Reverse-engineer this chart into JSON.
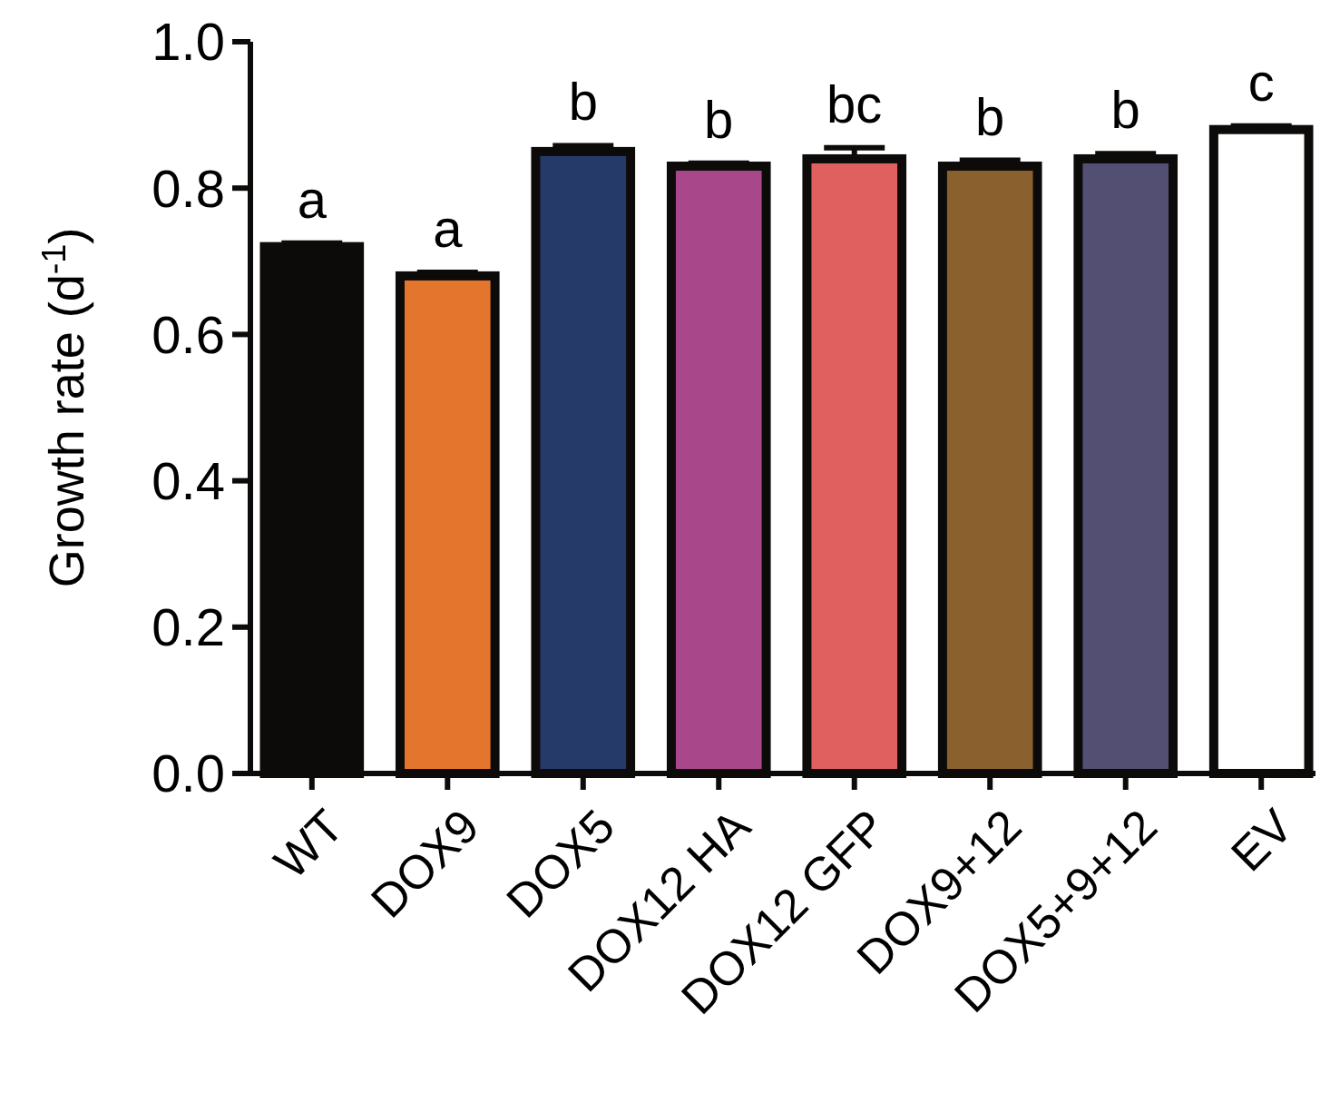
{
  "chart_data": {
    "type": "bar",
    "ylabel": "Growth rate (d$^{-1}$)",
    "categories": [
      "WT",
      "DOX9",
      "DOX5",
      "DOX12 HA",
      "DOX12 GFP",
      "DOX9+12",
      "DOX5+9+12",
      "EV"
    ],
    "values": [
      0.72,
      0.68,
      0.85,
      0.83,
      0.84,
      0.83,
      0.84,
      0.88
    ],
    "colors": [
      "#0c0b09",
      "#e3762c",
      "#263a6a",
      "#a84789",
      "#e06060",
      "#8a612e",
      "#524f72",
      "#ffffff"
    ],
    "errors": [
      [
        0.72,
        0.725
      ],
      [
        0.68,
        0.685
      ],
      [
        0.85,
        0.858
      ],
      [
        0.83,
        0.834
      ],
      [
        0.84,
        0.855
      ],
      [
        0.83,
        0.838
      ],
      [
        0.84,
        0.847
      ],
      [
        0.88,
        0.885
      ]
    ],
    "ylim": [
      0,
      1
    ],
    "yticks": [
      {
        "value": 0,
        "label": "0.0"
      },
      {
        "value": 0.2,
        "label": "0.2"
      },
      {
        "value": 0.4,
        "label": "0.4"
      },
      {
        "value": 0.6,
        "label": "0.6"
      },
      {
        "value": 0.8,
        "label": "0.8"
      },
      {
        "value": 1,
        "label": "1.0"
      }
    ],
    "annotations": [
      {
        "text": "a",
        "x": "WT",
        "y": 0.725
      },
      {
        "text": "a",
        "x": "DOX9",
        "y": 0.685
      },
      {
        "text": "b",
        "x": "DOX5",
        "y": 0.858
      },
      {
        "text": "b",
        "x": "DOX12 HA",
        "y": 0.834
      },
      {
        "text": "bc",
        "x": "DOX12 GFP",
        "y": 0.855
      },
      {
        "text": "b",
        "x": "DOX9+12",
        "y": 0.838
      },
      {
        "text": "b",
        "x": "DOX5+9+12",
        "y": 0.847
      },
      {
        "text": "c",
        "x": "EV",
        "y": 0.885
      }
    ],
    "grid": false
  }
}
